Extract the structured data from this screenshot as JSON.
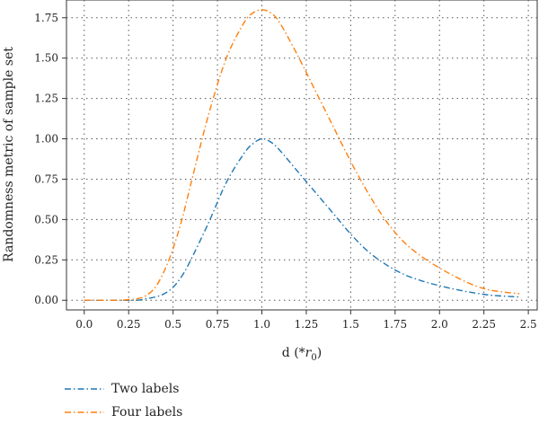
{
  "chart_data": {
    "type": "line",
    "xlabel_prefix": "d (*",
    "xlabel_var": "r",
    "xlabel_sub": "0",
    "xlabel_suffix": ")",
    "ylabel": "Randomness metric of sample set",
    "xlim": [
      -0.1,
      2.55
    ],
    "ylim": [
      -0.06,
      1.86
    ],
    "x_ticks": [
      0.0,
      0.25,
      0.5,
      0.75,
      1.0,
      1.25,
      1.5,
      1.75,
      2.0,
      2.25,
      2.5
    ],
    "x_tick_labels": [
      "0.0",
      "0.25",
      "0.5",
      "0.75",
      "1.0",
      "1.25",
      "1.5",
      "1.75",
      "2.0",
      "2.25",
      "2.5"
    ],
    "y_ticks": [
      0.0,
      0.25,
      0.5,
      0.75,
      1.0,
      1.25,
      1.5,
      1.75
    ],
    "y_tick_labels": [
      "0.00",
      "0.25",
      "0.50",
      "0.75",
      "1.00",
      "1.25",
      "1.50",
      "1.75"
    ],
    "grid": true,
    "legend_position": "bottom-left",
    "series": [
      {
        "name": "Two labels",
        "color": "#1f77b4",
        "x": [
          0.0,
          0.1,
          0.2,
          0.3,
          0.35,
          0.4,
          0.45,
          0.5,
          0.55,
          0.6,
          0.7,
          0.8,
          0.9,
          0.95,
          1.0,
          1.05,
          1.1,
          1.2,
          1.3,
          1.4,
          1.5,
          1.6,
          1.7,
          1.8,
          1.9,
          2.0,
          2.1,
          2.2,
          2.3,
          2.45
        ],
        "y": [
          0.0,
          0.0,
          0.0,
          0.0,
          0.01,
          0.02,
          0.04,
          0.08,
          0.15,
          0.25,
          0.48,
          0.73,
          0.91,
          0.97,
          1.0,
          0.98,
          0.93,
          0.8,
          0.67,
          0.54,
          0.41,
          0.3,
          0.22,
          0.16,
          0.12,
          0.09,
          0.065,
          0.045,
          0.03,
          0.02
        ]
      },
      {
        "name": "Four labels",
        "color": "#ff7f0e",
        "x": [
          0.0,
          0.1,
          0.2,
          0.3,
          0.35,
          0.4,
          0.45,
          0.5,
          0.55,
          0.6,
          0.7,
          0.8,
          0.9,
          0.95,
          1.0,
          1.05,
          1.1,
          1.2,
          1.3,
          1.4,
          1.5,
          1.6,
          1.7,
          1.8,
          1.9,
          2.0,
          2.1,
          2.2,
          2.3,
          2.45
        ],
        "y": [
          0.0,
          0.0,
          0.0,
          0.01,
          0.03,
          0.08,
          0.18,
          0.32,
          0.5,
          0.72,
          1.15,
          1.5,
          1.72,
          1.78,
          1.8,
          1.78,
          1.72,
          1.52,
          1.3,
          1.08,
          0.86,
          0.66,
          0.49,
          0.36,
          0.27,
          0.2,
          0.14,
          0.09,
          0.06,
          0.04
        ]
      }
    ]
  }
}
